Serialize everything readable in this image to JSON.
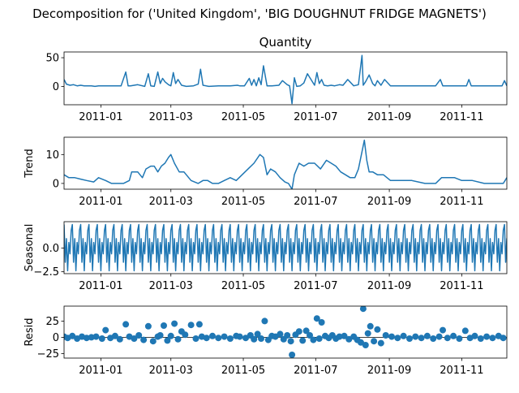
{
  "figure": {
    "suptitle": "Decomposition for ('United Kingdom', 'BIG DOUGHNUT FRIDGE MAGNETS')"
  },
  "line_color": "#1f77b4",
  "chart_data": [
    {
      "type": "line",
      "title": "Quantity",
      "xlabel": "",
      "ylabel": "",
      "xlim": [
        "2010-12-01",
        "2011-12-09"
      ],
      "ylim": [
        -32,
        60
      ],
      "yticks": [
        0,
        50
      ],
      "ytick_labels": [
        "0",
        "50"
      ],
      "xticks": [
        "2011-01-01",
        "2011-03-01",
        "2011-05-01",
        "2011-07-01",
        "2011-09-01",
        "2011-11-01"
      ],
      "xtick_labels": [
        "2011-01",
        "2011-03",
        "2011-05",
        "2011-07",
        "2011-09",
        "2011-11"
      ],
      "series": [
        {
          "x": [
            "2010-12-01",
            "2010-12-03",
            "2010-12-06",
            "2010-12-09",
            "2010-12-12",
            "2010-12-15",
            "2010-12-18",
            "2010-12-21",
            "2010-12-24",
            "2010-12-27",
            "2010-12-30",
            "2011-01-05",
            "2011-01-12",
            "2011-01-18",
            "2011-01-22",
            "2011-01-24",
            "2011-01-26",
            "2011-02-01",
            "2011-02-07",
            "2011-02-10",
            "2011-02-12",
            "2011-02-15",
            "2011-02-18",
            "2011-02-20",
            "2011-02-22",
            "2011-02-24",
            "2011-02-27",
            "2011-03-01",
            "2011-03-03",
            "2011-03-05",
            "2011-03-07",
            "2011-03-10",
            "2011-03-14",
            "2011-03-20",
            "2011-03-24",
            "2011-03-26",
            "2011-03-28",
            "2011-04-02",
            "2011-04-10",
            "2011-04-20",
            "2011-04-26",
            "2011-04-28",
            "2011-05-02",
            "2011-05-06",
            "2011-05-08",
            "2011-05-10",
            "2011-05-12",
            "2011-05-14",
            "2011-05-16",
            "2011-05-18",
            "2011-05-21",
            "2011-05-25",
            "2011-05-31",
            "2011-06-03",
            "2011-06-07",
            "2011-06-09",
            "2011-06-11",
            "2011-06-13",
            "2011-06-15",
            "2011-06-18",
            "2011-06-21",
            "2011-06-24",
            "2011-06-27",
            "2011-06-30",
            "2011-07-02",
            "2011-07-04",
            "2011-07-06",
            "2011-07-08",
            "2011-07-11",
            "2011-07-14",
            "2011-07-17",
            "2011-07-21",
            "2011-07-24",
            "2011-07-28",
            "2011-08-02",
            "2011-08-06",
            "2011-08-09",
            "2011-08-10",
            "2011-08-12",
            "2011-08-15",
            "2011-08-18",
            "2011-08-20",
            "2011-08-22",
            "2011-08-25",
            "2011-08-28",
            "2011-09-02",
            "2011-09-10",
            "2011-09-20",
            "2011-09-30",
            "2011-10-10",
            "2011-10-14",
            "2011-10-16",
            "2011-10-18",
            "2011-10-25",
            "2011-11-05",
            "2011-11-07",
            "2011-11-09",
            "2011-11-15",
            "2011-11-25",
            "2011-12-05",
            "2011-12-07",
            "2011-12-09"
          ],
          "values": [
            12,
            4,
            2,
            3,
            1,
            2,
            1,
            1,
            1,
            0,
            1,
            1,
            1,
            1,
            25,
            1,
            1,
            3,
            0,
            22,
            1,
            0,
            25,
            5,
            14,
            8,
            3,
            1,
            24,
            5,
            12,
            2,
            0,
            1,
            4,
            30,
            2,
            0,
            1,
            1,
            2,
            1,
            1,
            14,
            2,
            12,
            1,
            15,
            3,
            36,
            1,
            1,
            2,
            10,
            3,
            1,
            -30,
            15,
            0,
            1,
            6,
            22,
            12,
            2,
            24,
            5,
            12,
            2,
            1,
            2,
            1,
            3,
            2,
            12,
            1,
            3,
            54,
            2,
            8,
            20,
            5,
            1,
            10,
            2,
            12,
            1,
            1,
            1,
            1,
            1,
            12,
            1,
            1,
            1,
            1,
            12,
            1,
            1,
            1,
            1,
            10,
            1
          ]
        }
      ]
    },
    {
      "type": "line",
      "title": "",
      "xlabel": "",
      "ylabel": "Trend",
      "xlim": [
        "2010-12-01",
        "2011-12-09"
      ],
      "ylim": [
        -2,
        16
      ],
      "yticks": [
        0,
        10
      ],
      "ytick_labels": [
        "0",
        "10"
      ],
      "xticks": [
        "2011-01-01",
        "2011-03-01",
        "2011-05-01",
        "2011-07-01",
        "2011-09-01",
        "2011-11-01"
      ],
      "xtick_labels": [
        "2011-01",
        "2011-03",
        "2011-05",
        "2011-07",
        "2011-09",
        "2011-11"
      ],
      "series": [
        {
          "x": [
            "2010-12-01",
            "2010-12-05",
            "2010-12-10",
            "2010-12-15",
            "2010-12-20",
            "2010-12-26",
            "2010-12-30",
            "2011-01-05",
            "2011-01-10",
            "2011-01-15",
            "2011-01-20",
            "2011-01-25",
            "2011-01-27",
            "2011-02-01",
            "2011-02-05",
            "2011-02-08",
            "2011-02-12",
            "2011-02-15",
            "2011-02-18",
            "2011-02-21",
            "2011-02-24",
            "2011-02-27",
            "2011-03-01",
            "2011-03-04",
            "2011-03-08",
            "2011-03-12",
            "2011-03-18",
            "2011-03-24",
            "2011-03-28",
            "2011-04-01",
            "2011-04-05",
            "2011-04-10",
            "2011-04-15",
            "2011-04-20",
            "2011-04-25",
            "2011-04-30",
            "2011-05-05",
            "2011-05-10",
            "2011-05-15",
            "2011-05-18",
            "2011-05-21",
            "2011-05-24",
            "2011-05-28",
            "2011-06-01",
            "2011-06-05",
            "2011-06-08",
            "2011-06-11",
            "2011-06-13",
            "2011-06-17",
            "2011-06-21",
            "2011-06-25",
            "2011-06-30",
            "2011-07-05",
            "2011-07-10",
            "2011-07-14",
            "2011-07-18",
            "2011-07-22",
            "2011-07-26",
            "2011-07-30",
            "2011-08-03",
            "2011-08-06",
            "2011-08-09",
            "2011-08-11",
            "2011-08-13",
            "2011-08-15",
            "2011-08-18",
            "2011-08-22",
            "2011-08-27",
            "2011-09-02",
            "2011-09-10",
            "2011-09-20",
            "2011-10-01",
            "2011-10-10",
            "2011-10-15",
            "2011-10-20",
            "2011-10-26",
            "2011-11-01",
            "2011-11-10",
            "2011-11-20",
            "2011-12-01",
            "2011-12-06",
            "2011-12-09"
          ],
          "values": [
            3,
            2,
            2,
            1.5,
            1,
            0.5,
            2,
            1,
            0,
            0,
            0,
            1,
            4,
            4,
            2,
            5,
            6,
            6,
            4,
            6,
            7,
            9,
            10,
            7,
            4,
            4,
            1,
            0,
            1,
            1,
            0,
            0,
            1,
            2,
            1,
            3,
            5,
            7,
            10,
            9,
            3,
            5,
            4,
            2,
            0.5,
            0,
            -2,
            3,
            7,
            6,
            7,
            7,
            5,
            8,
            7,
            6,
            4,
            3,
            2,
            2,
            5,
            11,
            15,
            8,
            4,
            4,
            3,
            3,
            1,
            1,
            1,
            0,
            0,
            2,
            2,
            2,
            1,
            1,
            0,
            0,
            0,
            2
          ]
        }
      ]
    },
    {
      "type": "line",
      "title": "",
      "xlabel": "",
      "ylabel": "Seasonal",
      "xlim": [
        "2010-12-01",
        "2011-12-09"
      ],
      "ylim": [
        -2.7,
        2.8
      ],
      "yticks": [
        -2.5,
        0.0
      ],
      "ytick_labels": [
        "−2.5",
        "0.0"
      ],
      "xticks": [
        "2011-01-01",
        "2011-03-01",
        "2011-05-01",
        "2011-07-01",
        "2011-09-01",
        "2011-11-01"
      ],
      "xtick_labels": [
        "2011-01",
        "2011-03",
        "2011-05",
        "2011-07",
        "2011-09",
        "2011-11"
      ],
      "series": [
        {
          "period_days": 7,
          "pattern": [
            2.5,
            -1.5,
            1.0,
            -2.4,
            0.6,
            -0.6,
            1.9
          ]
        }
      ]
    },
    {
      "type": "scatter",
      "title": "",
      "xlabel": "",
      "ylabel": "Resid",
      "xlim": [
        "2010-12-01",
        "2011-12-09"
      ],
      "ylim": [
        -32,
        48
      ],
      "yticks": [
        -25,
        0,
        25
      ],
      "ytick_labels": [
        "−25",
        "0",
        "25"
      ],
      "xticks": [
        "2011-01-01",
        "2011-03-01",
        "2011-05-01",
        "2011-07-01",
        "2011-09-01",
        "2011-11-01"
      ],
      "xtick_labels": [
        "2011-01",
        "2011-03",
        "2011-05",
        "2011-07",
        "2011-09",
        "2011-11"
      ],
      "baseline": 0,
      "series": [
        {
          "x": [
            "2010-12-01",
            "2010-12-04",
            "2010-12-08",
            "2010-12-12",
            "2010-12-16",
            "2010-12-20",
            "2010-12-24",
            "2010-12-28",
            "2011-01-02",
            "2011-01-05",
            "2011-01-09",
            "2011-01-13",
            "2011-01-17",
            "2011-01-22",
            "2011-01-25",
            "2011-01-29",
            "2011-02-02",
            "2011-02-06",
            "2011-02-10",
            "2011-02-14",
            "2011-02-18",
            "2011-02-20",
            "2011-02-23",
            "2011-02-26",
            "2011-03-01",
            "2011-03-04",
            "2011-03-07",
            "2011-03-10",
            "2011-03-13",
            "2011-03-18",
            "2011-03-22",
            "2011-03-25",
            "2011-03-27",
            "2011-03-31",
            "2011-04-05",
            "2011-04-10",
            "2011-04-15",
            "2011-04-20",
            "2011-04-25",
            "2011-04-28",
            "2011-05-03",
            "2011-05-07",
            "2011-05-10",
            "2011-05-13",
            "2011-05-16",
            "2011-05-19",
            "2011-05-22",
            "2011-05-25",
            "2011-05-28",
            "2011-06-01",
            "2011-06-04",
            "2011-06-07",
            "2011-06-10",
            "2011-06-11",
            "2011-06-14",
            "2011-06-17",
            "2011-06-20",
            "2011-06-23",
            "2011-06-26",
            "2011-06-29",
            "2011-07-02",
            "2011-07-04",
            "2011-07-06",
            "2011-07-09",
            "2011-07-12",
            "2011-07-15",
            "2011-07-18",
            "2011-07-21",
            "2011-07-25",
            "2011-07-29",
            "2011-08-02",
            "2011-08-05",
            "2011-08-08",
            "2011-08-10",
            "2011-08-12",
            "2011-08-14",
            "2011-08-16",
            "2011-08-19",
            "2011-08-22",
            "2011-08-25",
            "2011-08-29",
            "2011-09-03",
            "2011-09-08",
            "2011-09-13",
            "2011-09-18",
            "2011-09-23",
            "2011-09-28",
            "2011-10-03",
            "2011-10-08",
            "2011-10-13",
            "2011-10-16",
            "2011-10-20",
            "2011-10-25",
            "2011-10-30",
            "2011-11-04",
            "2011-11-08",
            "2011-11-12",
            "2011-11-17",
            "2011-11-22",
            "2011-11-27",
            "2011-12-02",
            "2011-12-06"
          ],
          "values": [
            1,
            -1,
            2,
            -2,
            1,
            -1,
            0,
            1,
            -2,
            11,
            -1,
            2,
            -3,
            20,
            1,
            -2,
            3,
            -4,
            17,
            -6,
            1,
            3,
            18,
            -5,
            2,
            21,
            -3,
            9,
            4,
            19,
            -2,
            20,
            1,
            -1,
            2,
            -1,
            1,
            -2,
            2,
            1,
            -1,
            3,
            -3,
            5,
            -2,
            25,
            -4,
            2,
            1,
            5,
            -3,
            3,
            -6,
            -27,
            4,
            9,
            -5,
            10,
            3,
            -4,
            29,
            -2,
            23,
            2,
            -1,
            3,
            -2,
            1,
            2,
            -3,
            1,
            -4,
            -8,
            44,
            -12,
            6,
            17,
            -6,
            12,
            -9,
            3,
            1,
            -1,
            2,
            -2,
            1,
            -1,
            2,
            -2,
            1,
            11,
            -1,
            2,
            -2,
            10,
            -1,
            2,
            -2,
            1,
            -1,
            2,
            -1
          ]
        }
      ]
    }
  ]
}
